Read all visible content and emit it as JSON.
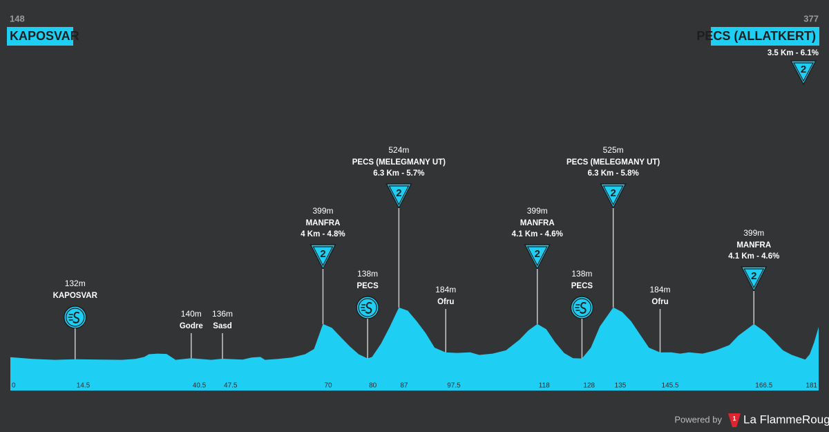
{
  "chart_data": {
    "type": "area",
    "color": "#1fcff3",
    "x": [
      0,
      5,
      10,
      14.5,
      20,
      25,
      28,
      30,
      31,
      33,
      35,
      36,
      37,
      40.5,
      45,
      47.5,
      52,
      54,
      56,
      57,
      60,
      63,
      66,
      68,
      70,
      72,
      74,
      76,
      78,
      80,
      81,
      83,
      85,
      87,
      89,
      91,
      93,
      95,
      97.5,
      100,
      103,
      105,
      108,
      111,
      114,
      116,
      118,
      120,
      122,
      124,
      126,
      128,
      130,
      132,
      135,
      137,
      139,
      141,
      143,
      145.5,
      148,
      150,
      152,
      155,
      158,
      161,
      163,
      166.5,
      169,
      171,
      173,
      175,
      178,
      179,
      180,
      181
    ],
    "values": [
      148,
      135,
      128,
      132,
      130,
      128,
      135,
      150,
      170,
      175,
      172,
      150,
      128,
      140,
      128,
      136,
      130,
      145,
      150,
      128,
      135,
      145,
      170,
      210,
      399,
      370,
      300,
      230,
      170,
      138,
      150,
      250,
      380,
      524,
      500,
      420,
      330,
      220,
      184,
      180,
      185,
      165,
      175,
      200,
      280,
      350,
      399,
      360,
      260,
      180,
      140,
      138,
      220,
      380,
      525,
      490,
      420,
      320,
      220,
      184,
      185,
      175,
      185,
      175,
      200,
      240,
      310,
      399,
      340,
      270,
      200,
      165,
      130,
      170,
      260,
      377
    ],
    "xlim": [
      0,
      181
    ],
    "ylim": [
      0,
      600
    ],
    "xticks": [
      0,
      14.5,
      40.5,
      47.5,
      70,
      80,
      87,
      97.5,
      118,
      128,
      135,
      145.5,
      166.5,
      181
    ],
    "start": {
      "elevation": 148,
      "name": "KAPOSVAR"
    },
    "finish": {
      "elevation": 377,
      "name": "PECS (ALLATKERT)",
      "climb": "3.5 Km - 6.1%",
      "category": "2"
    },
    "points": [
      {
        "x": 14.5,
        "elevation": 132,
        "elevation_label": "132m",
        "name": "KAPOSVAR",
        "kind": "sprint"
      },
      {
        "x": 40.5,
        "elevation": 140,
        "elevation_label": "140m",
        "name": "Godre"
      },
      {
        "x": 47.5,
        "elevation": 136,
        "elevation_label": "136m",
        "name": "Sasd"
      },
      {
        "x": 70,
        "elevation": 399,
        "elevation_label": "399m",
        "name": "MANFRA",
        "climb": "4 Km - 4.8%",
        "category": "2"
      },
      {
        "x": 80,
        "elevation": 138,
        "elevation_label": "138m",
        "name": "PECS",
        "kind": "sprint"
      },
      {
        "x": 87,
        "elevation": 524,
        "elevation_label": "524m",
        "name": "PECS (MELEGMANY UT)",
        "climb": "6.3 Km - 5.7%",
        "category": "2"
      },
      {
        "x": 97.5,
        "elevation": 184,
        "elevation_label": "184m",
        "name": "Ofru"
      },
      {
        "x": 118,
        "elevation": 399,
        "elevation_label": "399m",
        "name": "MANFRA",
        "climb": "4.1 Km - 4.6%",
        "category": "2"
      },
      {
        "x": 128,
        "elevation": 138,
        "elevation_label": "138m",
        "name": "PECS",
        "kind": "sprint"
      },
      {
        "x": 135,
        "elevation": 525,
        "elevation_label": "525m",
        "name": "PECS (MELEGMANY UT)",
        "climb": "6.3 Km - 5.8%",
        "category": "2"
      },
      {
        "x": 145.5,
        "elevation": 184,
        "elevation_label": "184m",
        "name": "Ofru"
      },
      {
        "x": 166.5,
        "elevation": 399,
        "elevation_label": "399m",
        "name": "MANFRA",
        "climb": "4.1 Km - 4.6%",
        "category": "2"
      }
    ]
  },
  "footer": {
    "powered_by": "Powered by",
    "logo_mark": "1",
    "brand": "La FlammeRouge"
  }
}
